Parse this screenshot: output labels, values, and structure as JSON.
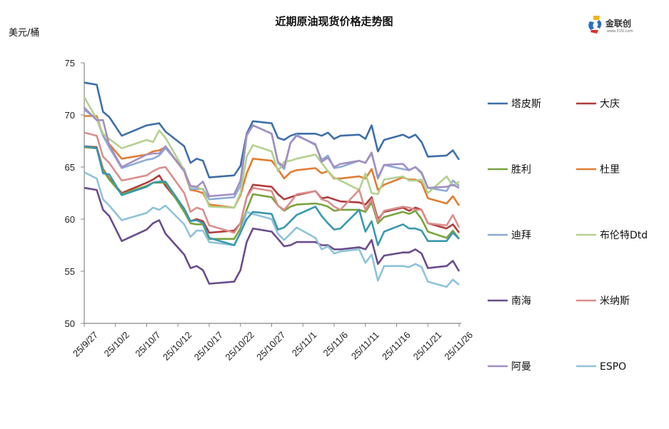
{
  "logo": {
    "text": "金联创",
    "sub": "www.315i.com"
  },
  "chart_data": {
    "type": "line",
    "title": "近期原油现货价格走势图",
    "ylabel": "美元/桶",
    "xlabel": "",
    "ylim": [
      50,
      75
    ],
    "yticks": [
      50,
      55,
      60,
      65,
      70,
      75
    ],
    "xrange_days": [
      0,
      60
    ],
    "xtick_labels": [
      "25/9/27",
      "25/10/2",
      "25/10/7",
      "25/10/12",
      "25/10/17",
      "25/10/22",
      "25/10/27",
      "25/11/1",
      "25/11/6",
      "25/11/11",
      "25/11/16",
      "25/11/21",
      "25/11/26"
    ],
    "grid": false,
    "legend": "right",
    "x": [
      "25/9/27",
      "25/9/29",
      "25/9/30",
      "25/10/1",
      "25/10/3",
      "25/10/7",
      "25/10/8",
      "25/10/9",
      "25/10/10",
      "25/10/13",
      "25/10/14",
      "25/10/15",
      "25/10/16",
      "25/10/17",
      "25/10/21",
      "25/10/22",
      "25/10/23",
      "25/10/24",
      "25/10/27",
      "25/10/28",
      "25/10/29",
      "25/10/30",
      "25/10/31",
      "25/11/3",
      "25/11/4",
      "25/11/5",
      "25/11/6",
      "25/11/7",
      "25/11/10",
      "25/11/11",
      "25/11/12",
      "25/11/13",
      "25/11/14",
      "25/11/17",
      "25/11/18",
      "25/11/19",
      "25/11/20",
      "25/11/21",
      "25/11/24",
      "25/11/25",
      "25/11/26"
    ],
    "x_days": [
      0,
      2,
      3,
      4,
      6,
      10,
      11,
      12,
      13,
      16,
      17,
      18,
      19,
      20,
      24,
      25,
      26,
      27,
      30,
      31,
      32,
      33,
      34,
      37,
      38,
      39,
      40,
      41,
      44,
      45,
      46,
      47,
      48,
      51,
      52,
      53,
      54,
      55,
      58,
      59,
      60
    ],
    "series": [
      {
        "name": "塔皮斯",
        "color": "#3f6ea8",
        "values": [
          73.1,
          72.9,
          70.3,
          69.8,
          68.0,
          69.0,
          69.1,
          69.2,
          68.4,
          67.0,
          65.4,
          65.8,
          65.6,
          64.0,
          64.2,
          65.1,
          68.2,
          69.4,
          69.2,
          67.8,
          67.6,
          68.0,
          68.2,
          68.2,
          68.0,
          68.3,
          67.7,
          68.0,
          68.1,
          67.7,
          69.0,
          66.5,
          67.6,
          68.1,
          67.8,
          68.1,
          67.4,
          66.0,
          66.1,
          66.6,
          65.7
        ]
      },
      {
        "name": "大庆",
        "color": "#b03c3c",
        "values": [
          67.0,
          66.9,
          64.8,
          63.9,
          62.5,
          63.5,
          63.8,
          64.2,
          63.2,
          61.0,
          59.8,
          60.0,
          59.8,
          58.7,
          58.9,
          59.6,
          62.1,
          63.3,
          63.1,
          62.4,
          61.9,
          62.1,
          62.3,
          62.7,
          62.0,
          62.1,
          61.9,
          61.7,
          61.6,
          61.4,
          62.1,
          60.0,
          60.7,
          61.1,
          60.8,
          61.1,
          60.9,
          59.6,
          59.1,
          59.5,
          58.7
        ]
      },
      {
        "name": "胜利",
        "color": "#7aa33e",
        "values": [
          66.9,
          66.8,
          64.7,
          63.8,
          62.4,
          63.2,
          63.5,
          63.5,
          63.5,
          60.7,
          59.6,
          59.5,
          59.5,
          58.1,
          58.1,
          59.1,
          60.9,
          62.4,
          62.1,
          61.3,
          60.8,
          61.2,
          61.4,
          61.5,
          61.4,
          61.2,
          60.8,
          60.9,
          60.9,
          60.7,
          61.6,
          59.6,
          60.2,
          60.7,
          60.5,
          60.8,
          60.0,
          58.8,
          58.2,
          58.9,
          58.1
        ]
      },
      {
        "name": "杜里",
        "color": "#e07d33",
        "values": [
          69.9,
          69.9,
          68.0,
          67.2,
          65.8,
          66.2,
          66.5,
          66.6,
          66.9,
          64.6,
          62.8,
          62.7,
          62.5,
          61.4,
          61.1,
          62.3,
          64.4,
          65.8,
          65.6,
          64.8,
          63.9,
          64.5,
          64.7,
          64.9,
          64.4,
          64.6,
          63.9,
          63.9,
          64.1,
          63.9,
          64.8,
          62.8,
          63.3,
          64.0,
          63.8,
          63.8,
          63.5,
          62.0,
          61.5,
          62.2,
          61.3
        ]
      },
      {
        "name": "迪拜",
        "color": "#8eaad6",
        "values": [
          70.5,
          69.6,
          68.0,
          66.9,
          64.9,
          65.7,
          65.8,
          66.1,
          66.8,
          64.8,
          62.9,
          62.9,
          62.9,
          61.9,
          62.1,
          63.2,
          68.0,
          69.0,
          68.2,
          65.4,
          64.8,
          67.3,
          68.1,
          67.1,
          65.7,
          66.1,
          64.9,
          65.0,
          65.6,
          65.4,
          66.3,
          64.0,
          65.2,
          64.8,
          64.7,
          65.0,
          64.5,
          63.0,
          62.7,
          63.7,
          63.2
        ]
      },
      {
        "name": "布伦特Dtd",
        "color": "#b3d18e",
        "values": [
          71.7,
          69.6,
          68.2,
          67.7,
          66.8,
          67.6,
          67.4,
          68.5,
          67.8,
          64.7,
          63.1,
          63.1,
          62.8,
          61.2,
          61.1,
          62.5,
          66.0,
          67.1,
          66.5,
          64.6,
          65.5,
          65.6,
          65.8,
          66.2,
          65.4,
          64.6,
          64.0,
          63.7,
          62.8,
          64.4,
          62.5,
          62.4,
          63.8,
          64.1,
          63.7,
          63.7,
          63.8,
          62.5,
          64.1,
          63.2,
          63.6
        ]
      },
      {
        "name": "南海",
        "color": "#6a4c8c",
        "values": [
          63.0,
          62.8,
          60.9,
          60.3,
          57.9,
          59.0,
          59.6,
          59.9,
          58.6,
          56.6,
          55.3,
          55.5,
          55.1,
          53.8,
          54.0,
          55.1,
          57.8,
          59.1,
          58.8,
          58.1,
          57.4,
          57.5,
          57.8,
          57.8,
          57.5,
          57.5,
          57.1,
          57.1,
          57.3,
          57.1,
          58.0,
          55.7,
          56.5,
          56.8,
          56.8,
          57.1,
          56.7,
          55.3,
          55.5,
          56.0,
          55.0
        ]
      },
      {
        "name": "米纳斯",
        "color": "#d98f8d",
        "values": [
          68.3,
          68.0,
          66.0,
          65.4,
          63.7,
          64.2,
          64.6,
          64.9,
          65.0,
          62.5,
          60.7,
          61.1,
          60.9,
          59.4,
          58.7,
          59.6,
          62.1,
          63.0,
          62.7,
          61.3,
          60.9,
          61.6,
          62.4,
          62.7,
          61.9,
          61.7,
          61.2,
          60.9,
          62.8,
          60.9,
          61.9,
          59.8,
          60.8,
          61.2,
          61.1,
          60.9,
          60.9,
          59.6,
          59.4,
          60.4,
          59.2
        ]
      },
      {
        "name": "阿曼",
        "color": "#a28fc1",
        "values": [
          70.7,
          69.5,
          69.5,
          67.1,
          65.0,
          66.2,
          66.3,
          66.3,
          67.0,
          64.6,
          63.2,
          63.1,
          63.6,
          62.2,
          62.4,
          63.7,
          68.1,
          69.0,
          68.2,
          65.5,
          65.0,
          67.3,
          68.0,
          67.2,
          65.5,
          65.9,
          65.0,
          65.3,
          65.6,
          65.4,
          66.4,
          63.9,
          65.2,
          65.3,
          64.7,
          65.0,
          64.4,
          63.0,
          63.1,
          63.3,
          63.0
        ]
      },
      {
        "name": "ESPO",
        "color": "#8fc3d8",
        "values": [
          64.5,
          63.9,
          61.9,
          61.3,
          59.9,
          60.6,
          61.1,
          60.9,
          61.3,
          59.5,
          58.3,
          58.9,
          58.9,
          57.8,
          57.5,
          58.7,
          60.7,
          60.5,
          60.0,
          58.6,
          58.0,
          58.6,
          59.2,
          58.2,
          57.1,
          57.4,
          56.7,
          56.9,
          57.1,
          55.8,
          56.6,
          54.1,
          55.5,
          55.5,
          55.4,
          55.7,
          55.4,
          54.0,
          53.5,
          54.2,
          53.7
        ]
      },
      {
        "name": "",
        "color": "#3a98b0",
        "values": [
          67.0,
          66.8,
          64.4,
          64.3,
          62.3,
          63.1,
          63.5,
          63.6,
          63.6,
          61.0,
          59.8,
          59.9,
          59.6,
          58.2,
          57.5,
          58.7,
          60.0,
          60.7,
          60.5,
          59.0,
          59.2,
          59.8,
          60.4,
          61.2,
          60.3,
          59.6,
          59.0,
          59.1,
          60.9,
          58.8,
          59.8,
          57.5,
          58.8,
          59.5,
          59.1,
          59.1,
          58.9,
          57.9,
          57.9,
          58.7,
          58.1
        ]
      }
    ]
  }
}
